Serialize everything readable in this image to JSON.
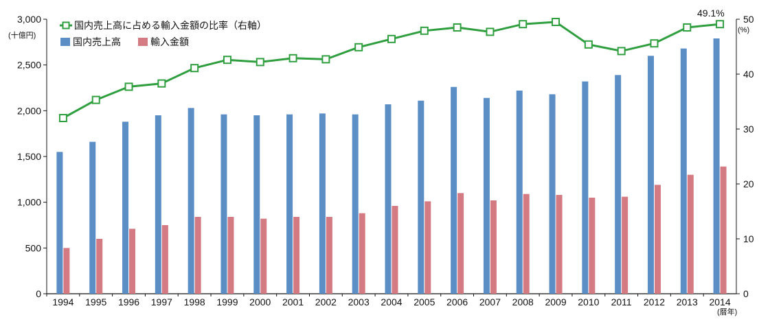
{
  "chart_data": {
    "type": "bar",
    "categories": [
      "1994",
      "1995",
      "1996",
      "1997",
      "1998",
      "1999",
      "2000",
      "2001",
      "2002",
      "2003",
      "2004",
      "2005",
      "2006",
      "2007",
      "2008",
      "2009",
      "2010",
      "2011",
      "2012",
      "2013",
      "2014"
    ],
    "series": [
      {
        "name": "国内売上高",
        "kind": "bar",
        "axis": "left",
        "color": "#5b8ec5",
        "values": [
          1550,
          1660,
          1880,
          1950,
          2030,
          1960,
          1950,
          1960,
          1970,
          1960,
          2070,
          2110,
          2260,
          2140,
          2220,
          2180,
          2320,
          2390,
          2600,
          2680,
          2790
        ]
      },
      {
        "name": "輸入金額",
        "kind": "bar",
        "axis": "left",
        "color": "#d47a82",
        "values": [
          500,
          600,
          710,
          750,
          840,
          840,
          820,
          840,
          840,
          880,
          960,
          1010,
          1100,
          1020,
          1090,
          1080,
          1050,
          1060,
          1190,
          1300,
          1390
        ]
      },
      {
        "name": "国内売上高に占める輸入金額の比率（右軸）",
        "kind": "line",
        "axis": "right",
        "color": "#2f9e3f",
        "values": [
          32.0,
          35.3,
          37.7,
          38.3,
          41.1,
          42.6,
          42.2,
          42.9,
          42.7,
          44.9,
          46.4,
          47.9,
          48.5,
          47.7,
          49.1,
          49.5,
          45.4,
          44.2,
          45.6,
          48.5,
          49.1
        ]
      }
    ],
    "y_left": {
      "min": 0,
      "max": 3000,
      "ticks": [
        "0",
        "500",
        "1,000",
        "1,500",
        "2,000",
        "2,500",
        "3,000"
      ],
      "unit": "(十億円)"
    },
    "y_right": {
      "min": 0,
      "max": 50,
      "ticks": [
        "0",
        "10",
        "20",
        "30",
        "40",
        "50"
      ],
      "unit": "(%)"
    },
    "x_unit": "(暦年)",
    "annotation": "49.1%",
    "legend": {
      "line_label": "国内売上高に占める輸入金額の比率（右軸）",
      "bar1_label": "国内売上高",
      "bar2_label": "輸入金額",
      "position": "top-left"
    }
  }
}
